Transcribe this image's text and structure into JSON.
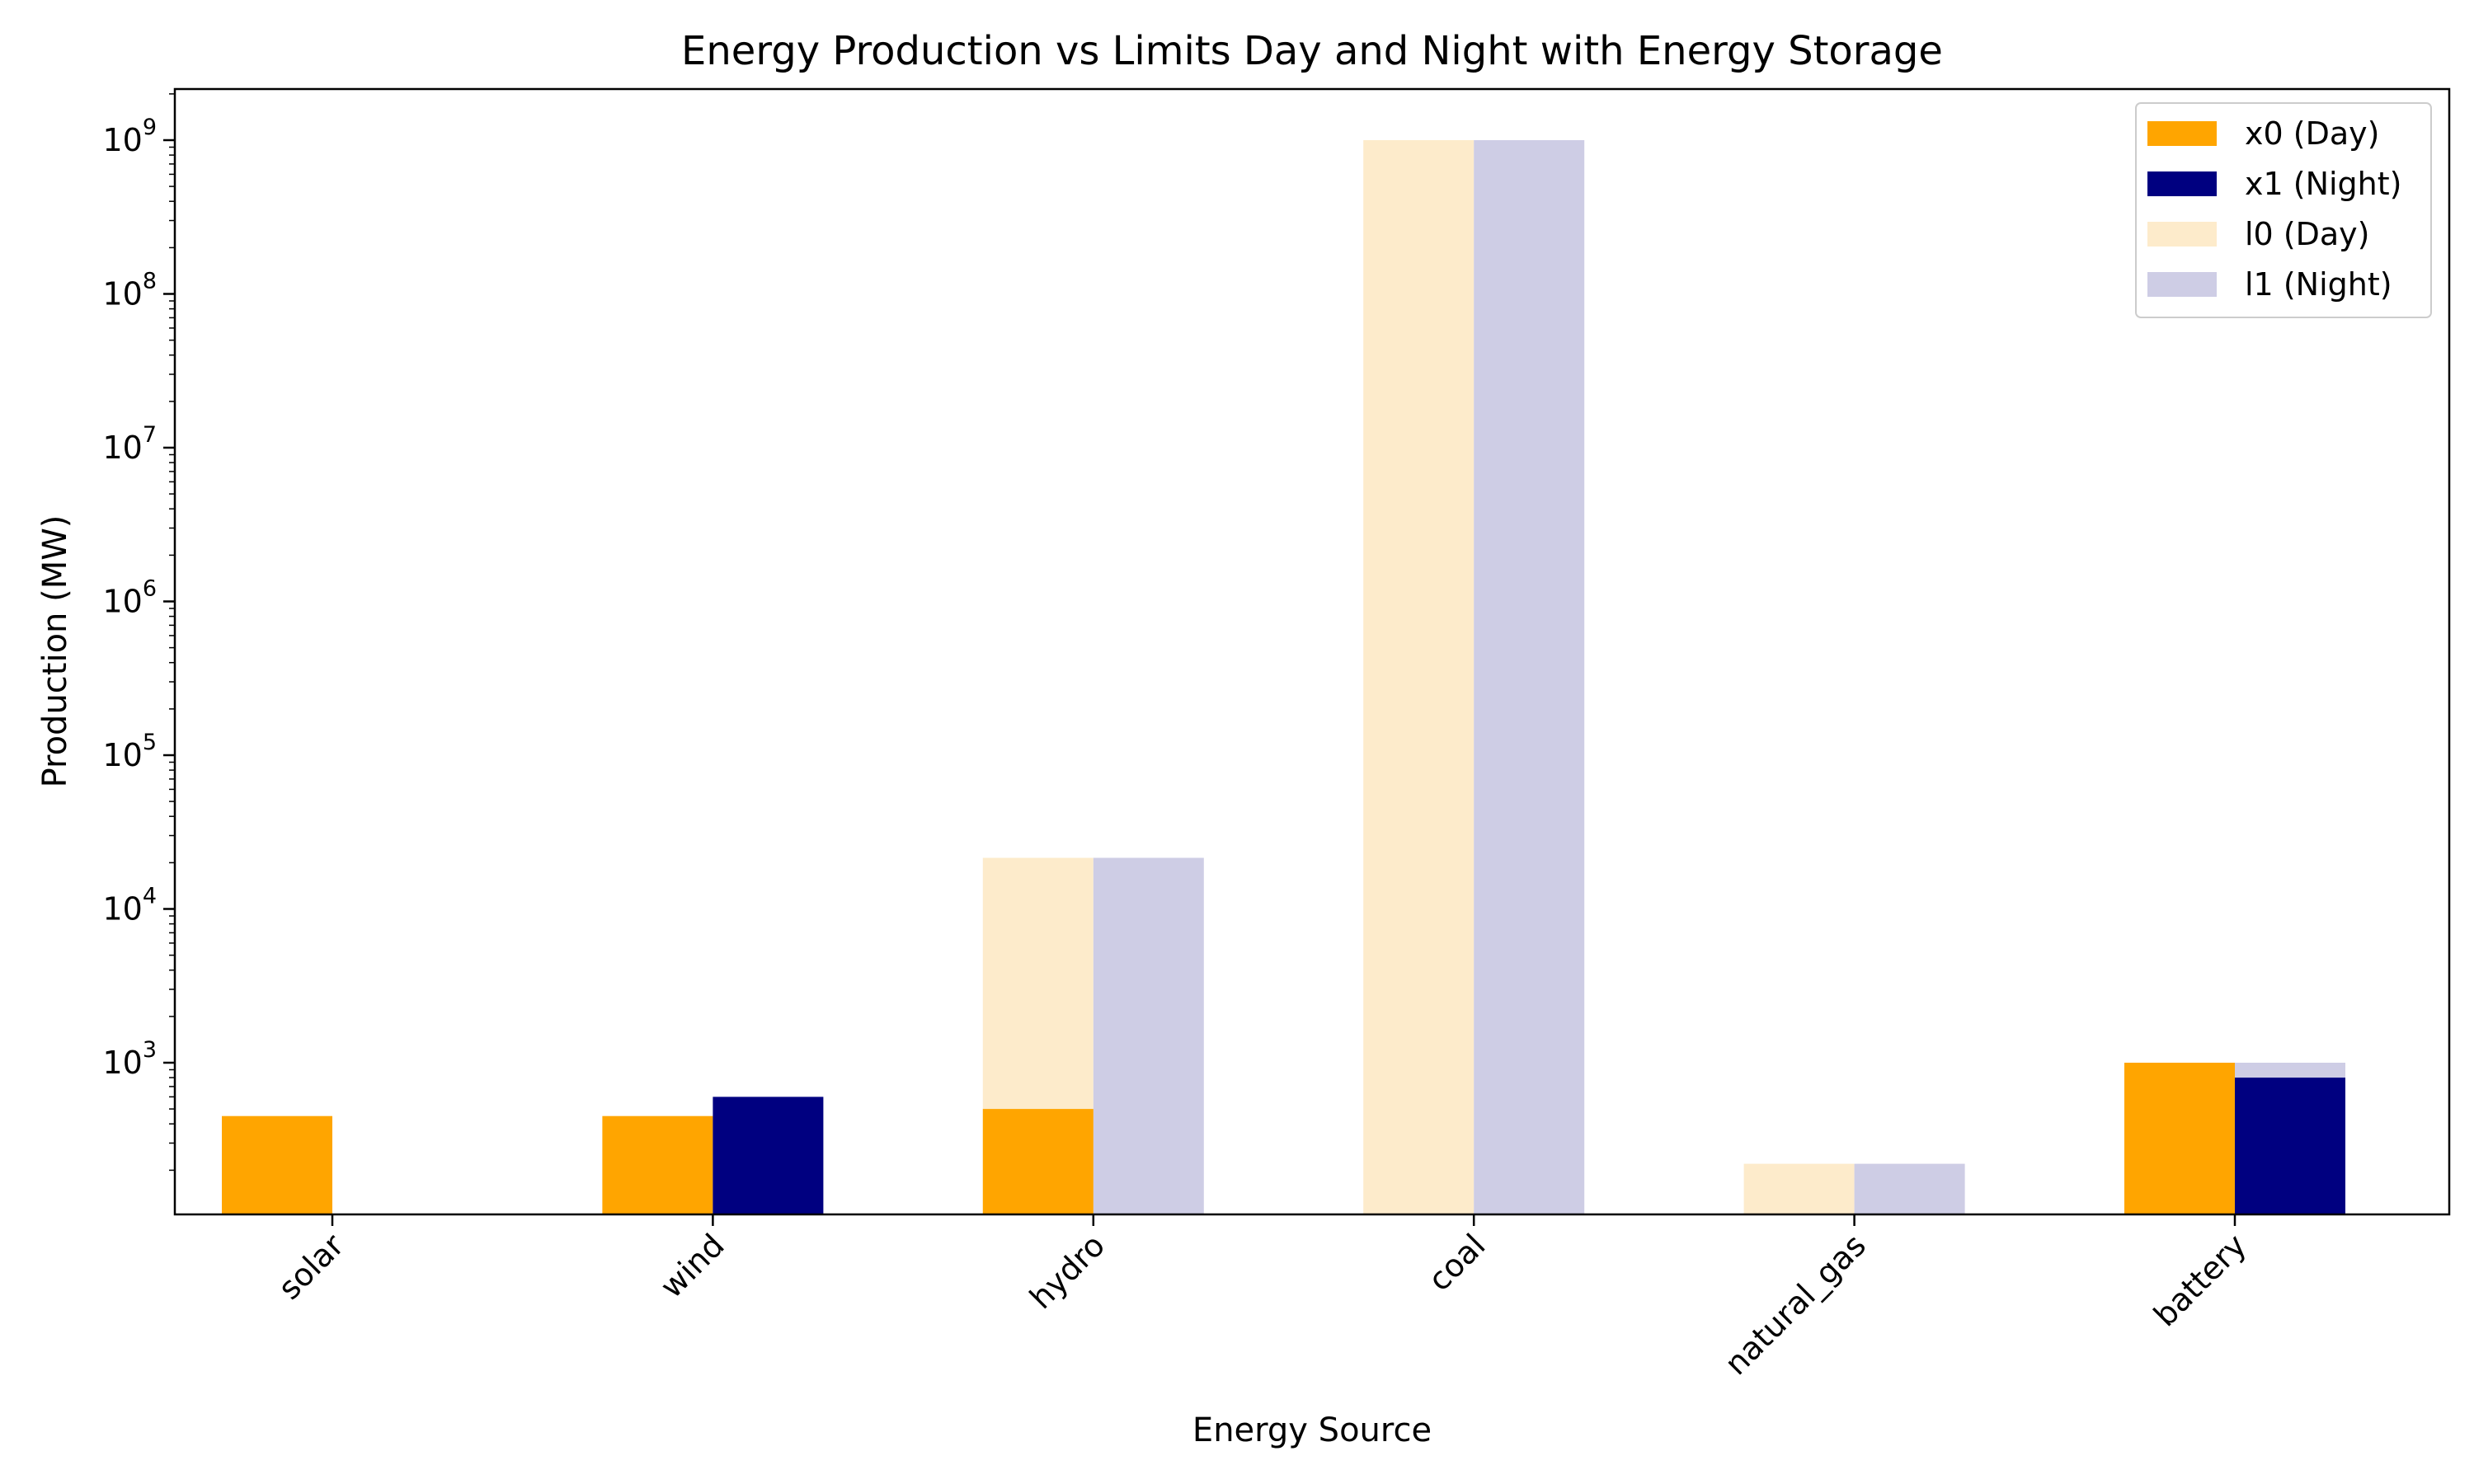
{
  "chart_data": {
    "type": "bar",
    "title": "Energy Production vs Limits Day and Night with Energy Storage",
    "xlabel": "Energy Source",
    "ylabel": "Production (MW)",
    "yscale": "log",
    "ylim": [
      110,
      2000000000
    ],
    "categories": [
      "solar",
      "wind",
      "hydro",
      "coal",
      "natural_gas",
      "battery"
    ],
    "y_ticks": [
      {
        "base": "10",
        "exp": "3",
        "value": 1000
      },
      {
        "base": "10",
        "exp": "4",
        "value": 10000
      },
      {
        "base": "10",
        "exp": "5",
        "value": 100000
      },
      {
        "base": "10",
        "exp": "6",
        "value": 1000000
      },
      {
        "base": "10",
        "exp": "7",
        "value": 10000000
      },
      {
        "base": "10",
        "exp": "8",
        "value": 100000000
      },
      {
        "base": "10",
        "exp": "9",
        "value": 1000000000
      }
    ],
    "series": [
      {
        "name": "x0 (Day)",
        "period": "day",
        "kind": "production",
        "color": "#FFA500",
        "values": [
          450,
          450,
          500,
          0,
          0,
          1000
        ]
      },
      {
        "name": "x1 (Night)",
        "period": "night",
        "kind": "production",
        "color": "#000080",
        "values": [
          0,
          600,
          0,
          0,
          0,
          800
        ]
      },
      {
        "name": "l0 (Day)",
        "period": "day",
        "kind": "limit",
        "color": "#FDEBCB",
        "values": [
          0,
          0,
          21500,
          1000000000,
          220,
          0
        ]
      },
      {
        "name": "l1 (Night)",
        "period": "night",
        "kind": "limit",
        "color": "#CECDE5",
        "values": [
          0,
          0,
          21500,
          1000000000,
          220,
          1000
        ]
      }
    ],
    "legend": "top-right",
    "grid": false
  }
}
